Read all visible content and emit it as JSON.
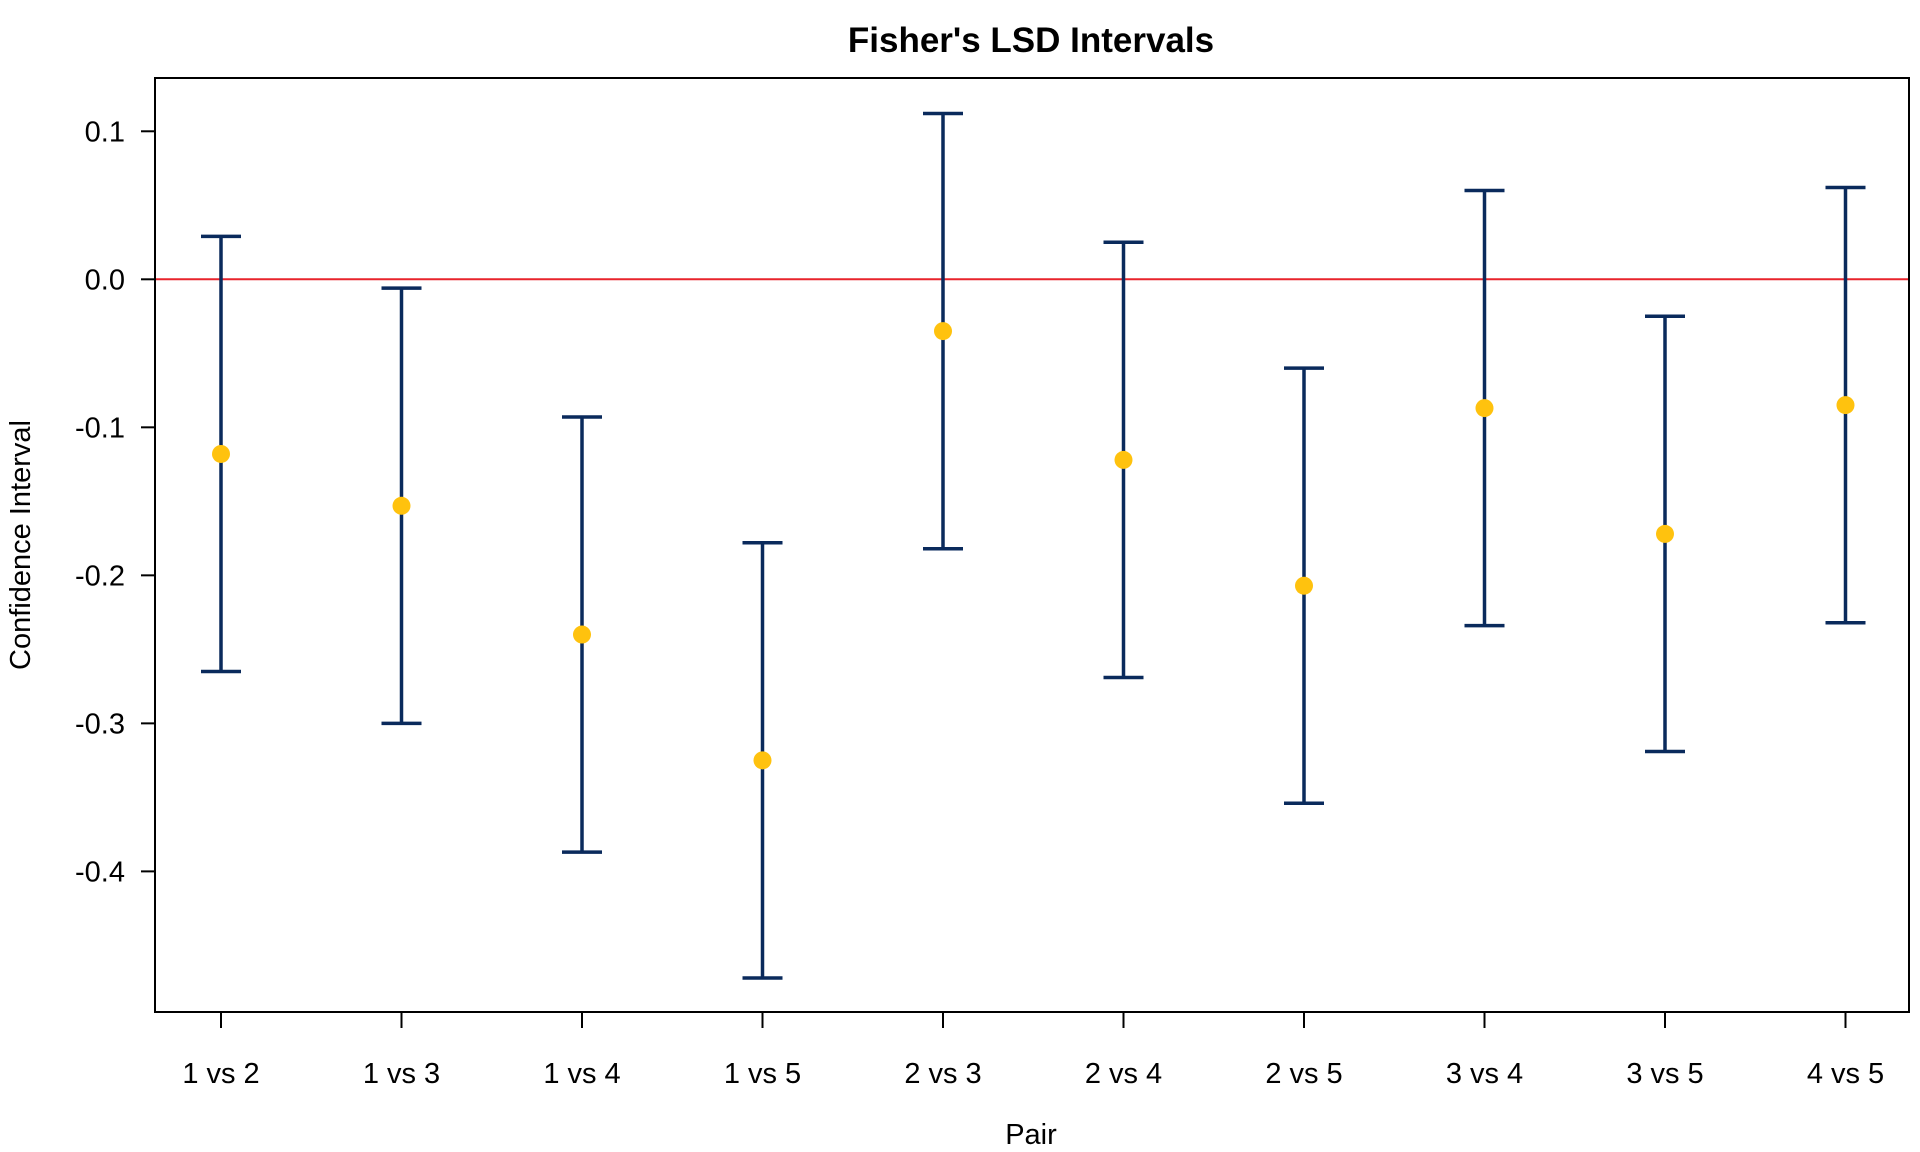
{
  "chart_data": {
    "type": "errorbar",
    "title": "Fisher's LSD Intervals",
    "xlabel": "Pair",
    "ylabel": "Confidence Interval",
    "categories": [
      "1 vs 2",
      "1 vs 3",
      "1 vs 4",
      "1 vs 5",
      "2 vs 3",
      "2 vs 4",
      "2 vs 5",
      "3 vs 4",
      "3 vs 5",
      "4 vs 5"
    ],
    "estimate": [
      -0.118,
      -0.153,
      -0.24,
      -0.325,
      -0.035,
      -0.122,
      -0.207,
      -0.087,
      -0.172,
      -0.085
    ],
    "lower": [
      -0.265,
      -0.3,
      -0.387,
      -0.472,
      -0.182,
      -0.269,
      -0.354,
      -0.234,
      -0.319,
      -0.232
    ],
    "upper": [
      0.029,
      -0.006,
      -0.093,
      -0.178,
      0.112,
      0.025,
      -0.06,
      0.06,
      -0.025,
      0.062
    ],
    "yticks": [
      0.1,
      0.0,
      -0.1,
      -0.2,
      -0.3,
      -0.4
    ],
    "ytick_labels": [
      "0.1",
      "0.0",
      "-0.1",
      "-0.2",
      "-0.3",
      "-0.4"
    ],
    "ylim": [
      -0.495,
      0.136
    ],
    "reference_line": 0.0,
    "grid": false,
    "colors": {
      "interval": "#0a2a5c",
      "point": "#ffc20e",
      "reference": "#e8242c",
      "frame": "#000000"
    }
  }
}
